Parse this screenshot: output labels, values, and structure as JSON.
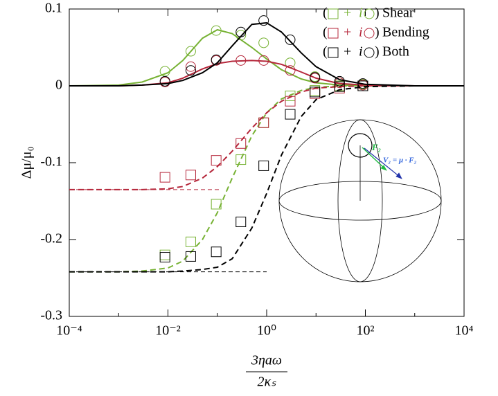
{
  "chart_data": {
    "type": "scatter",
    "ylabel": "Δμ/μ₀",
    "xlabel_numerator": "3ηaω",
    "xlabel_denominator": "2κₛ",
    "xlog": true,
    "xlim": [
      0.0001,
      10000
    ],
    "xticks": [
      {
        "value": 0.0001,
        "label": "10⁻⁴"
      },
      {
        "value": 0.01,
        "label": "10⁻²"
      },
      {
        "value": 1,
        "label": "10⁰"
      },
      {
        "value": 100,
        "label": "10²"
      },
      {
        "value": 10000,
        "label": "10⁴"
      }
    ],
    "xminorticks": [
      0.001,
      0.1,
      10,
      1000
    ],
    "ylim": [
      -0.3,
      0.1
    ],
    "yticks": [
      -0.3,
      -0.2,
      -0.1,
      0,
      0.1
    ],
    "legend_marker_text": [
      "(",
      "+",
      "i",
      ")"
    ],
    "x": [
      0.0087,
      0.029,
      0.095,
      0.3,
      0.87,
      3.0,
      9.5,
      30,
      89
    ],
    "curve_x": [
      0.0001,
      0.001,
      0.003,
      0.01,
      0.02,
      0.05,
      0.1,
      0.2,
      0.5,
      1,
      2,
      5,
      10,
      30,
      100,
      1000,
      10000
    ],
    "series": [
      {
        "name": "Shear",
        "color": "#77b234",
        "real": [
          -0.22,
          -0.203,
          -0.154,
          -0.096,
          -0.048,
          -0.013,
          -0.006,
          0,
          0
        ],
        "imag": [
          0.019,
          0.045,
          0.072,
          0.066,
          0.056,
          0.03,
          0.012,
          0.004,
          0.002
        ],
        "fit_real": [
          -0.242,
          -0.242,
          -0.241,
          -0.237,
          -0.228,
          -0.2,
          -0.165,
          -0.12,
          -0.065,
          -0.035,
          -0.017,
          -0.006,
          -0.002,
          0,
          0,
          0,
          0
        ],
        "fit_imag": [
          0,
          0.001,
          0.005,
          0.017,
          0.033,
          0.062,
          0.073,
          0.068,
          0.05,
          0.035,
          0.021,
          0.009,
          0.004,
          0.001,
          0,
          0,
          0
        ]
      },
      {
        "name": "Bending",
        "color": "#b5263a",
        "real": [
          -0.119,
          -0.116,
          -0.097,
          -0.075,
          -0.048,
          -0.02,
          -0.01,
          -0.003,
          0
        ],
        "imag": [
          0.005,
          0.025,
          0.033,
          0.033,
          0.033,
          0.02,
          0.01,
          0.004,
          0.001
        ],
        "fit_real": [
          -0.135,
          -0.135,
          -0.135,
          -0.134,
          -0.131,
          -0.12,
          -0.105,
          -0.085,
          -0.055,
          -0.035,
          -0.02,
          -0.008,
          -0.003,
          -0.001,
          0,
          0,
          0
        ],
        "fit_imag": [
          0,
          0,
          0.001,
          0.004,
          0.01,
          0.022,
          0.029,
          0.032,
          0.033,
          0.032,
          0.028,
          0.018,
          0.01,
          0.003,
          0.001,
          0,
          0
        ]
      },
      {
        "name": "Both",
        "color": "#000000",
        "real": [
          -0.223,
          -0.222,
          -0.216,
          -0.177,
          -0.104,
          -0.037,
          -0.008,
          -0.001,
          0
        ],
        "imag": [
          0.006,
          0.02,
          0.034,
          0.07,
          0.085,
          0.06,
          0.011,
          0.006,
          0.003
        ],
        "fit_real": [
          -0.242,
          -0.242,
          -0.242,
          -0.242,
          -0.241,
          -0.239,
          -0.236,
          -0.225,
          -0.185,
          -0.14,
          -0.09,
          -0.04,
          -0.018,
          -0.005,
          -0.001,
          0,
          0
        ],
        "fit_imag": [
          0,
          0,
          0.001,
          0.003,
          0.007,
          0.017,
          0.03,
          0.052,
          0.08,
          0.082,
          0.07,
          0.043,
          0.025,
          0.008,
          0.002,
          0,
          0
        ]
      }
    ],
    "asymptotes": [
      {
        "value": -0.135,
        "xmax": 0.12,
        "color": "#b5263a"
      },
      {
        "value": -0.242,
        "xmax": 1,
        "color": "#000000"
      }
    ],
    "inset_labels": {
      "force": "F₂",
      "velocity": "V₂ = μ · F₂"
    }
  }
}
